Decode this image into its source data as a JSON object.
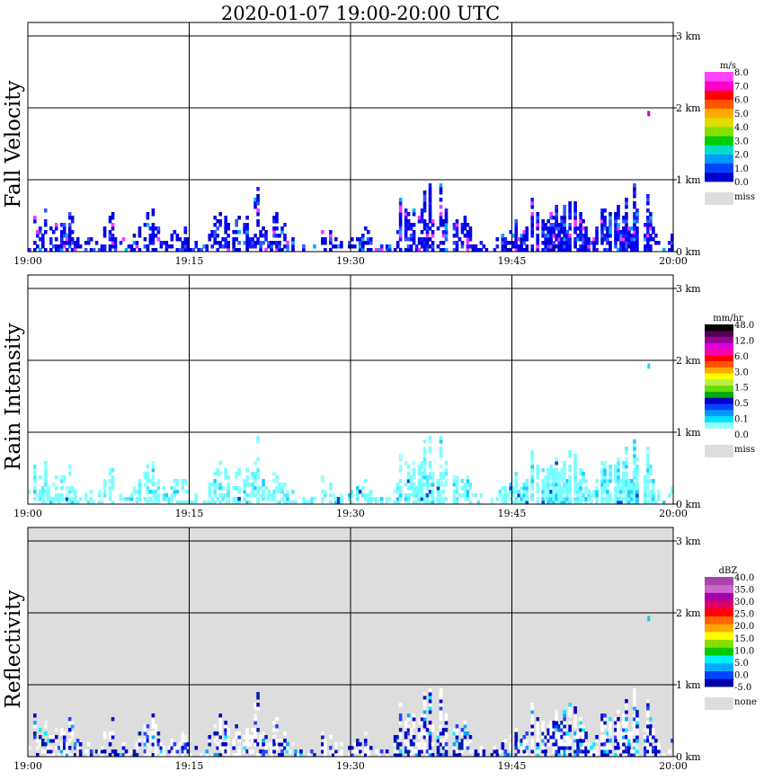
{
  "chart_data": {
    "type": "heatmap",
    "title": "2020-01-07   19:00-20:00 UTC",
    "x_ticks": [
      "19:00",
      "19:15",
      "19:30",
      "19:45",
      "20:00"
    ],
    "x_range_minutes": [
      0,
      60
    ],
    "y_ticks": [
      "0 km",
      "1 km",
      "2 km",
      "3 km"
    ],
    "y_range_km": [
      0,
      3.2
    ],
    "panels": [
      {
        "id": "fall-velocity",
        "ylabel": "Fall Velocity",
        "background": "#ffffff",
        "colorbar": {
          "unit": "m/s",
          "colors": [
            "#0000cc",
            "#0044ff",
            "#0099ff",
            "#00ddcc",
            "#00cc00",
            "#88dd00",
            "#dddd00",
            "#ffaa00",
            "#ff5500",
            "#ff0000",
            "#ff00cc",
            "#ff44ff"
          ],
          "labels": [
            "0.0",
            "1.0",
            "2.0",
            "3.0",
            "4.0",
            "5.0",
            "6.0",
            "7.0",
            "8.0"
          ],
          "missing_label": "miss",
          "missing_color": "#dddddd"
        },
        "echo_palette": [
          "#0000ee",
          "#1a1aff",
          "#0000bb",
          "#3355ff",
          "#ff33ff",
          "#00aaff"
        ],
        "echo_weights": [
          0.55,
          0.15,
          0.1,
          0.1,
          0.06,
          0.04
        ],
        "echo_speck": {
          "minute": 57.6,
          "height_km": 1.92,
          "color": "#cc00cc"
        }
      },
      {
        "id": "rain-intensity",
        "ylabel": "Rain Intensity",
        "background": "#ffffff",
        "colorbar": {
          "unit": "mm/hr",
          "colors": [
            "#ffffff",
            "#88ffff",
            "#00ddff",
            "#0099ff",
            "#0044ff",
            "#0000cc",
            "#00aa00",
            "#66dd00",
            "#bbee44",
            "#ffff00",
            "#ffaa00",
            "#ff5500",
            "#ff0000",
            "#ff00aa",
            "#dd00dd",
            "#990099",
            "#550055",
            "#000000"
          ],
          "labels": [
            "0.0",
            "0.1",
            "0.5",
            "1.5",
            "3.0",
            "6.0",
            "12.0",
            "48.0"
          ],
          "missing_label": "miss",
          "missing_color": "#dddddd"
        },
        "echo_palette": [
          "#77ffff",
          "#99ffff",
          "#55eeff",
          "#22ccff",
          "#0044dd"
        ],
        "echo_weights": [
          0.6,
          0.2,
          0.12,
          0.06,
          0.02
        ],
        "echo_speck": {
          "minute": 57.6,
          "height_km": 1.92,
          "color": "#22ccff"
        }
      },
      {
        "id": "reflectivity",
        "ylabel": "Reflectivity",
        "background": "#dddddd",
        "colorbar": {
          "unit": "dBZ",
          "colors": [
            "#0000aa",
            "#0044ff",
            "#00aaff",
            "#00eeff",
            "#00cc00",
            "#88dd00",
            "#ffff00",
            "#ffaa00",
            "#ff6600",
            "#ff0000",
            "#dd0066",
            "#aa00aa",
            "#cc66cc",
            "#aa44aa"
          ],
          "labels": [
            "-5.0",
            "0.0",
            "5.0",
            "10.0",
            "15.0",
            "20.0",
            "25.0",
            "30.0",
            "35.0",
            "40.0"
          ],
          "missing_label": "none",
          "missing_color": "#dddddd"
        },
        "echo_palette": [
          "#ffffff",
          "#f4f4f4",
          "#0000cc",
          "#0022aa",
          "#2244ff",
          "#00aaff",
          "#00eeff"
        ],
        "echo_weights": [
          0.4,
          0.12,
          0.22,
          0.1,
          0.08,
          0.05,
          0.03
        ],
        "echo_speck": {
          "minute": 57.6,
          "height_km": 1.92,
          "color": "#00ccff"
        }
      }
    ]
  }
}
